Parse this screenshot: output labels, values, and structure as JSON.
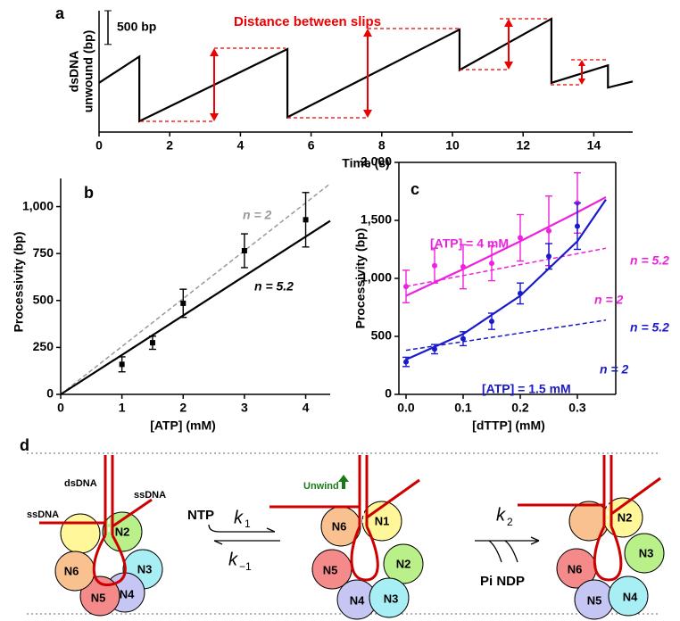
{
  "chart_data": [
    {
      "type": "line",
      "panel": "a",
      "xlabel": "Time (s)",
      "ylabel": [
        "dsDNA",
        "unwound (bp)"
      ],
      "annotation": "Distance between slips",
      "scalebar": {
        "value": 500,
        "label": "500 bp"
      },
      "xlim": [
        0,
        15.1
      ],
      "ylim": [
        0,
        1800
      ],
      "xticks": [
        0,
        2,
        4,
        6,
        8,
        10,
        12,
        14
      ],
      "series": [
        {
          "color": "#000000",
          "x": [
            0,
            1.14,
            1.14,
            5.33,
            5.33,
            10.2,
            10.2,
            12.8,
            12.8,
            14.4,
            14.4,
            15.1
          ],
          "values": [
            730,
            1120,
            160,
            1230,
            220,
            1520,
            920,
            1680,
            730,
            990,
            660,
            750
          ]
        }
      ]
    },
    {
      "type": "line",
      "panel": "b",
      "xlabel": "[ATP] (mM)",
      "ylabel": [
        "Processivity (bp)"
      ],
      "xlim": [
        0,
        4.4
      ],
      "ylim": [
        0,
        1150
      ],
      "xticks": [
        0,
        1,
        2,
        3,
        4
      ],
      "yticks": [
        0,
        250,
        500,
        750,
        {
          "value": 1000,
          "label": "1,000"
        }
      ],
      "series": [
        {
          "name": "n = 2",
          "color": "#999999",
          "dashed": true,
          "x": [
            0,
            4.4
          ],
          "values": [
            0,
            1122
          ]
        },
        {
          "name": "n = 5.2",
          "color": "#000000",
          "x": [
            0,
            4.4
          ],
          "values": [
            0,
            924
          ]
        },
        {
          "color": "#000000",
          "marker": "square",
          "x": [
            1,
            1.5,
            2,
            3,
            4
          ],
          "values": [
            160,
            275,
            485,
            765,
            930
          ],
          "errors": [
            40,
            35,
            75,
            90,
            145
          ]
        }
      ]
    },
    {
      "type": "line",
      "panel": "c",
      "xlabel": "[dTTP] (mM)",
      "ylabel": [
        "Processivity (bp)"
      ],
      "xlim": [
        -0.0125,
        0.3672
      ],
      "ylim": [
        0,
        2000
      ],
      "xticks": [
        {
          "value": 0,
          "label": "0.0"
        },
        0.1,
        0.2,
        0.3
      ],
      "yticks": [
        0,
        500,
        {
          "value": 1000,
          "label": "1,000"
        },
        {
          "value": 1500,
          "label": "1,500"
        },
        {
          "value": 2000,
          "label": "2,000"
        }
      ],
      "series": [
        {
          "name": "[ATP] = 4 mM",
          "color": "#ee22dd",
          "marker": "circle",
          "x": [
            0,
            0.05,
            0.1,
            0.15,
            0.2,
            0.25,
            0.3
          ],
          "values": [
            930,
            1110,
            1100,
            1130,
            1350,
            1410,
            1650
          ],
          "errors": [
            140,
            150,
            190,
            150,
            200,
            300,
            260
          ]
        },
        {
          "name": "n = 5.2",
          "color": "#ee22dd",
          "x": [
            0,
            0.1,
            0.2,
            0.3,
            0.35
          ],
          "values": [
            850,
            1080,
            1320,
            1570,
            1700
          ]
        },
        {
          "name": "n = 2",
          "color": "#ee22dd",
          "dashed": true,
          "x": [
            0,
            0.35
          ],
          "values": [
            930,
            1260
          ]
        },
        {
          "name": "[ATP] = 1.5 mM",
          "color": "#1a1acc",
          "marker": "circle",
          "x": [
            0,
            0.05,
            0.1,
            0.15,
            0.2,
            0.25,
            0.3
          ],
          "values": [
            280,
            390,
            480,
            630,
            870,
            1190,
            1450
          ],
          "errors": [
            40,
            40,
            60,
            70,
            90,
            110,
            200
          ]
        },
        {
          "name": "n = 5.2",
          "color": "#1a1acc",
          "x": [
            0,
            0.1,
            0.2,
            0.3,
            0.35
          ],
          "values": [
            300,
            520,
            850,
            1320,
            1680
          ]
        },
        {
          "name": "n = 2",
          "color": "#1a1acc",
          "dashed": true,
          "x": [
            0,
            0.35
          ],
          "values": [
            380,
            640
          ]
        }
      ]
    }
  ],
  "diagram": {
    "panel": "d",
    "dna_labels": [
      "dsDNA",
      "ssDNA",
      "ssDNA"
    ],
    "unwind": "Unwind",
    "ntp": "NTP",
    "products": "Pi NDP",
    "rates": [
      {
        "k": "k",
        "sub": "1"
      },
      {
        "k": "k",
        "sub": "−1"
      },
      {
        "k": "k",
        "sub": "2"
      }
    ],
    "complexes": [
      [
        "N2",
        "N3",
        "N4",
        "N5",
        "N6"
      ],
      [
        "N1",
        "N2",
        "N3",
        "N4",
        "N5",
        "N6"
      ],
      [
        "N2",
        "N3",
        "N4",
        "N5",
        "N6"
      ]
    ]
  }
}
